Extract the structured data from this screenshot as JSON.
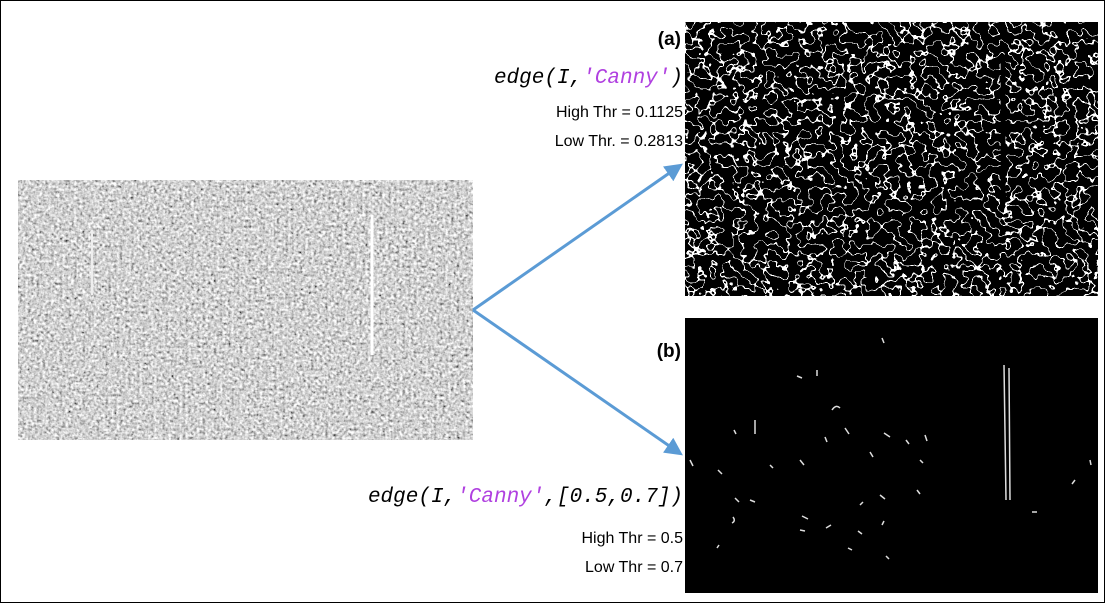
{
  "panel_a": {
    "label": "(a)",
    "code": {
      "prefix": "edge(I,",
      "string": "'Canny'",
      "suffix": ")"
    },
    "high_thr": "High Thr = 0.1125",
    "low_thr": "Low Thr. = 0.2813"
  },
  "panel_b": {
    "label": "(b)",
    "code": {
      "prefix": "edge(I,",
      "string": "'Canny'",
      "suffix": ",[0.5,0.7])"
    },
    "high_thr": "High Thr = 0.5",
    "low_thr": "Low Thr = 0.7"
  }
}
